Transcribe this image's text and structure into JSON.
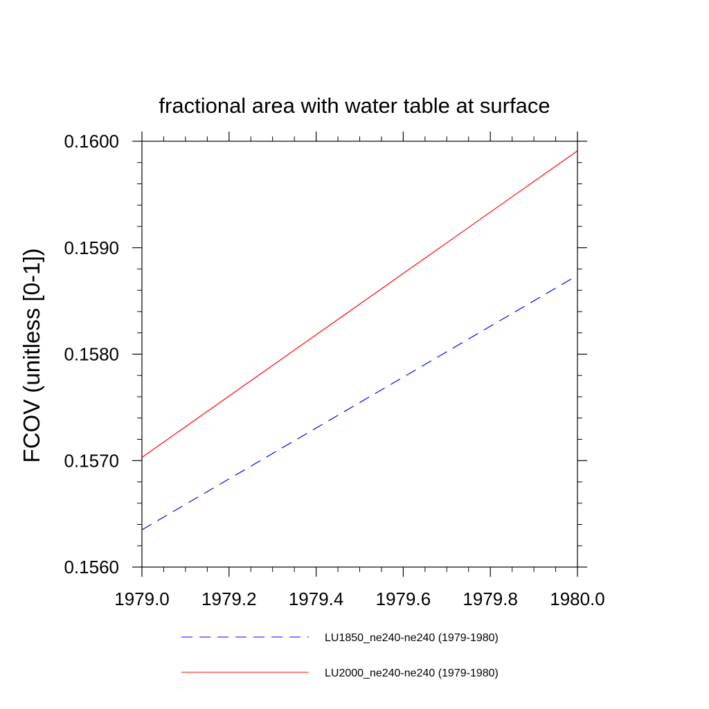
{
  "chart_data": {
    "type": "line",
    "title": "fractional area with water table at surface",
    "xlabel": "",
    "ylabel": "FCOV  (unitless [0-1])",
    "xlim": [
      1979.0,
      1980.0
    ],
    "ylim": [
      0.156,
      0.16
    ],
    "x_ticks": [
      "1979.0",
      "1979.2",
      "1979.4",
      "1979.6",
      "1979.8",
      "1980.0"
    ],
    "y_ticks": [
      "0.1560",
      "0.1570",
      "0.1580",
      "0.1590",
      "0.1600"
    ],
    "x_tick_values": [
      1979.0,
      1979.2,
      1979.4,
      1979.6,
      1979.8,
      1980.0
    ],
    "y_tick_values": [
      0.156,
      0.157,
      0.158,
      0.159,
      0.16
    ],
    "grid": false,
    "legend_position": "bottom",
    "x": [
      1979.0,
      1980.0
    ],
    "series": [
      {
        "name": "LU1850_ne240-ne240 (1979-1980)",
        "values": [
          0.15635,
          0.15874
        ],
        "color": "#0000ff",
        "style": "dashed"
      },
      {
        "name": "LU2000_ne240-ne240 (1979-1980)",
        "values": [
          0.15703,
          0.15991
        ],
        "color": "#ff0000",
        "style": "solid"
      }
    ]
  }
}
